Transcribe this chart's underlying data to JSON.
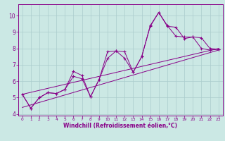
{
  "xlabel": "Windchill (Refroidissement éolien,°C)",
  "bg_color": "#cbe8e4",
  "line_color": "#880088",
  "grid_color": "#aacccc",
  "xlim": [
    -0.5,
    23.5
  ],
  "ylim": [
    3.9,
    10.7
  ],
  "xticks": [
    0,
    1,
    2,
    3,
    4,
    5,
    6,
    7,
    8,
    9,
    10,
    11,
    12,
    13,
    14,
    15,
    16,
    17,
    18,
    19,
    20,
    21,
    22,
    23
  ],
  "yticks": [
    4,
    5,
    6,
    7,
    8,
    9,
    10
  ],
  "line1_x": [
    0,
    1,
    2,
    3,
    4,
    5,
    6,
    7,
    8,
    9,
    10,
    11,
    12,
    13,
    14,
    15,
    16,
    17,
    18,
    19,
    20,
    21,
    22,
    23
  ],
  "line1_y": [
    5.2,
    4.35,
    5.0,
    5.3,
    5.25,
    5.5,
    6.6,
    6.35,
    5.05,
    6.1,
    7.8,
    7.85,
    7.8,
    6.55,
    7.5,
    9.4,
    10.2,
    9.4,
    8.75,
    8.7,
    8.7,
    8.0,
    7.9,
    7.95
  ],
  "line2_x": [
    0,
    1,
    2,
    3,
    4,
    5,
    6,
    7,
    8,
    9,
    10,
    11,
    12,
    13,
    14,
    15,
    16,
    17,
    18,
    19,
    20,
    21,
    22,
    23
  ],
  "line2_y": [
    5.2,
    4.35,
    5.0,
    5.3,
    5.25,
    5.5,
    6.3,
    6.15,
    5.05,
    6.1,
    7.4,
    7.85,
    7.4,
    6.55,
    7.5,
    9.35,
    10.2,
    9.35,
    9.3,
    8.6,
    8.7,
    8.65,
    8.0,
    7.95
  ],
  "line3_x": [
    0,
    23
  ],
  "line3_y": [
    4.4,
    7.9
  ],
  "line4_x": [
    0,
    23
  ],
  "line4_y": [
    5.2,
    8.0
  ]
}
